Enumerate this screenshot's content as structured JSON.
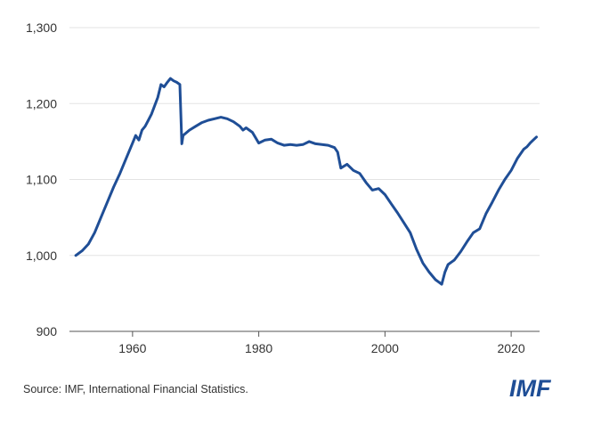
{
  "colors": {
    "line": "#1f4e96",
    "grid": "#e3e3e3",
    "axis": "#555555",
    "logo": "#1f4e96"
  },
  "source_text": "Source: IMF, International Financial Statistics.",
  "logo_text": "IMF",
  "chart_data": {
    "type": "line",
    "title": "",
    "xlabel": "",
    "ylabel": "",
    "xlim": [
      1950,
      2024.5
    ],
    "ylim": [
      900,
      1300
    ],
    "grid": true,
    "x_ticks": [
      1960,
      1980,
      2000,
      2020
    ],
    "x_tick_labels": [
      "1960",
      "1980",
      "2000",
      "2020"
    ],
    "y_ticks": [
      900,
      1000,
      1100,
      1200,
      1300
    ],
    "y_tick_labels": [
      "900",
      "1,000",
      "1,100",
      "1,200",
      "1,300"
    ],
    "series": [
      {
        "x": [
          1951,
          1952,
          1953,
          1954,
          1955,
          1956,
          1957,
          1958,
          1959,
          1960,
          1960.5,
          1961,
          1961.5,
          1962,
          1962.5,
          1963,
          1964,
          1964.5,
          1965,
          1965.5,
          1966,
          1966.5,
          1967,
          1967.5,
          1967.8,
          1968,
          1969,
          1970,
          1971,
          1972,
          1973,
          1974,
          1975,
          1976,
          1977,
          1977.5,
          1978,
          1979,
          1980,
          1981,
          1982,
          1983,
          1984,
          1985,
          1986,
          1987,
          1988,
          1989,
          1990,
          1991,
          1992,
          1992.5,
          1993,
          1994,
          1995,
          1996,
          1997,
          1998,
          1999,
          2000,
          2001,
          2002,
          2003,
          2004,
          2005,
          2006,
          2007,
          2008,
          2008.5,
          2009,
          2009.5,
          2010,
          2011,
          2012,
          2013,
          2014,
          2015,
          2016,
          2017,
          2018,
          2019,
          2020,
          2021,
          2022,
          2022.5,
          2023,
          2023.5,
          2024
        ],
        "values": [
          1000,
          1006,
          1015,
          1030,
          1050,
          1070,
          1090,
          1108,
          1128,
          1148,
          1158,
          1152,
          1165,
          1170,
          1178,
          1186,
          1208,
          1225,
          1222,
          1228,
          1233,
          1230,
          1228,
          1225,
          1147,
          1158,
          1165,
          1170,
          1175,
          1178,
          1180,
          1182,
          1180,
          1176,
          1170,
          1165,
          1168,
          1162,
          1148,
          1152,
          1153,
          1148,
          1145,
          1146,
          1145,
          1146,
          1150,
          1147,
          1146,
          1145,
          1142,
          1136,
          1115,
          1120,
          1112,
          1108,
          1096,
          1086,
          1088,
          1080,
          1068,
          1056,
          1043,
          1030,
          1008,
          990,
          978,
          968,
          965,
          962,
          978,
          988,
          994,
          1005,
          1018,
          1030,
          1035,
          1055,
          1070,
          1086,
          1100,
          1112,
          1128,
          1140,
          1143,
          1148,
          1152,
          1156
        ]
      }
    ]
  }
}
